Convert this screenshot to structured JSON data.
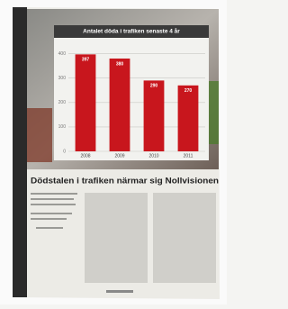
{
  "chart_data": {
    "type": "bar",
    "title": "Antalet döda i trafiken senaste 4 år",
    "categories": [
      "2008",
      "2009",
      "2010",
      "2011"
    ],
    "values": [
      397,
      380,
      290,
      270
    ],
    "color": "#c8161d",
    "ylim": [
      0,
      450
    ],
    "yticks": [
      0,
      100,
      200,
      300,
      400
    ],
    "grid": true
  },
  "article": {
    "headline": "Dödstalen i trafiken närmar sig Nollvisionen"
  }
}
